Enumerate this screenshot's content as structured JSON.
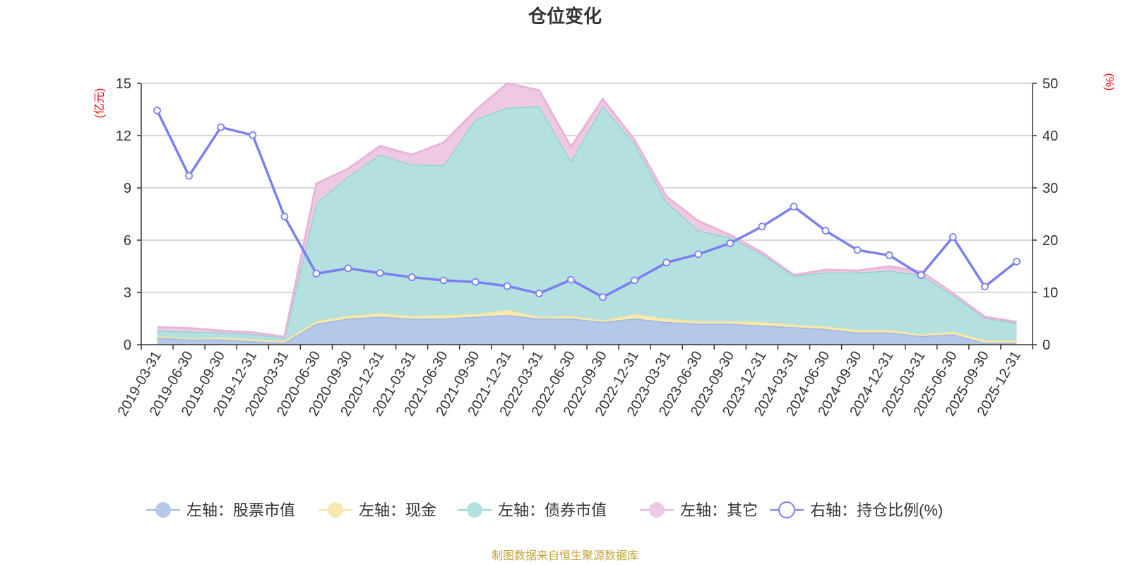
{
  "chart_data": {
    "type": "area",
    "title": "仓位变化",
    "y_left_unit": "(亿元)",
    "y_right_unit": "(%)",
    "y_left_range": [
      0,
      15
    ],
    "y_left_ticks": [
      "0",
      "3",
      "6",
      "9",
      "12",
      "15"
    ],
    "y_right_range": [
      0,
      50
    ],
    "y_right_ticks": [
      "0",
      "10",
      "20",
      "30",
      "40",
      "50"
    ],
    "grid": true,
    "legend_position": "bottom",
    "categories": [
      "2019-03-31",
      "2019-06-30",
      "2019-09-30",
      "2019-12-31",
      "2020-03-31",
      "2020-06-30",
      "2020-09-30",
      "2020-12-31",
      "2021-03-31",
      "2021-06-30",
      "2021-09-30",
      "2021-12-31",
      "2022-03-31",
      "2022-06-30",
      "2022-09-30",
      "2022-12-31",
      "2023-03-31",
      "2023-06-30",
      "2023-09-30",
      "2023-12-31",
      "2024-03-31",
      "2024-06-30",
      "2024-09-30",
      "2024-12-31",
      "2025-03-31",
      "2025-06-30",
      "2025-09-30",
      "2025-12-31"
    ],
    "series": [
      {
        "name": "左轴：股票市值",
        "axis": "left",
        "stack": true,
        "color": "#9db8e0",
        "fill": "#b5c8ea",
        "values": [
          0.4,
          0.3,
          0.3,
          0.2,
          0.1,
          1.2,
          1.5,
          1.6,
          1.5,
          1.5,
          1.6,
          1.7,
          1.5,
          1.5,
          1.3,
          1.5,
          1.3,
          1.2,
          1.2,
          1.1,
          1.0,
          0.9,
          0.7,
          0.7,
          0.5,
          0.6,
          0.1,
          0.1
        ]
      },
      {
        "name": "左轴：现金",
        "axis": "left",
        "stack": true,
        "color": "#f5e3a0",
        "fill": "#f7e9b0",
        "values": [
          0.1,
          0.05,
          0.1,
          0.1,
          0.1,
          0.15,
          0.15,
          0.2,
          0.15,
          0.2,
          0.15,
          0.3,
          0.1,
          0.15,
          0.1,
          0.25,
          0.2,
          0.15,
          0.15,
          0.2,
          0.15,
          0.15,
          0.15,
          0.15,
          0.1,
          0.15,
          0.15,
          0.15
        ]
      },
      {
        "name": "左轴：债券市值",
        "axis": "left",
        "stack": true,
        "color": "#90d4d4",
        "fill": "#b4e0e0",
        "values": [
          0.3,
          0.4,
          0.3,
          0.3,
          0.2,
          6.8,
          8.0,
          9.1,
          8.7,
          8.6,
          11.2,
          11.6,
          12.1,
          8.9,
          12.3,
          9.8,
          6.7,
          5.2,
          4.8,
          3.9,
          2.8,
          3.1,
          3.3,
          3.4,
          3.4,
          2.1,
          1.3,
          1.0
        ]
      },
      {
        "name": "左轴：其它",
        "axis": "left",
        "stack": true,
        "color": "#e8b4d8",
        "fill": "#eec9e3",
        "values": [
          0.2,
          0.2,
          0.1,
          0.1,
          0.05,
          1.1,
          0.45,
          0.5,
          0.55,
          1.3,
          0.5,
          1.4,
          0.9,
          0.8,
          0.4,
          0.2,
          0.3,
          0.55,
          0.15,
          0.1,
          0.05,
          0.15,
          0.1,
          0.25,
          0.2,
          0.1,
          0.05,
          0.05
        ]
      },
      {
        "name": "右轴：持仓比例(%)",
        "axis": "right",
        "stack": false,
        "color": "#7b7ff0",
        "values": [
          44.8,
          32.3,
          41.6,
          40.1,
          24.5,
          13.6,
          14.6,
          13.7,
          12.9,
          12.3,
          12.0,
          11.2,
          9.8,
          12.4,
          9.1,
          12.3,
          15.7,
          17.3,
          19.4,
          22.6,
          26.4,
          21.8,
          18.1,
          17.1,
          13.3,
          20.6,
          11.1,
          15.9
        ]
      }
    ]
  },
  "footer": {
    "source": "制图数据来自恒生聚源数据库"
  }
}
